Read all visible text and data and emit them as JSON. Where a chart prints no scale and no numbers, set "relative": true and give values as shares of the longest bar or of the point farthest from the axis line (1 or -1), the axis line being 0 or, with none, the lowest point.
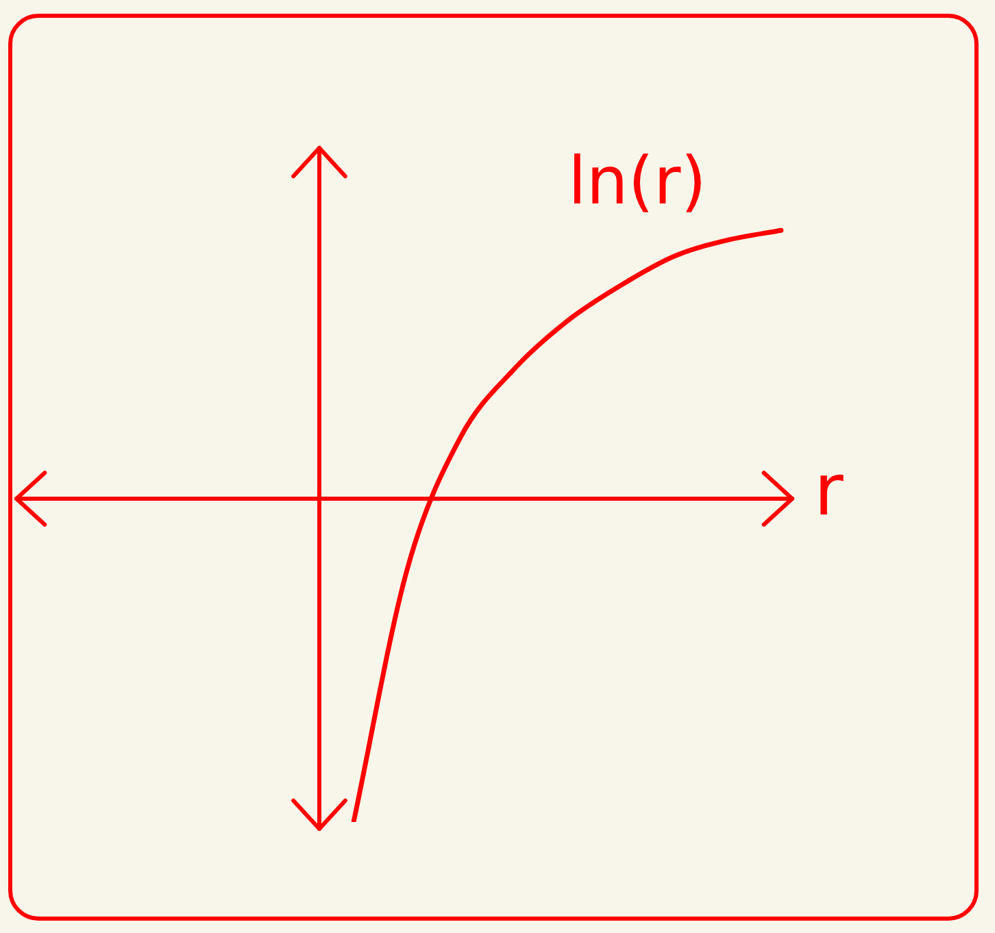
{
  "chart_data": {
    "type": "line",
    "relative": true,
    "xlabel": "r",
    "marker": "none",
    "ref_lines": [
      {
        "axis": "y",
        "value": 0
      }
    ],
    "categories": [
      null,
      null,
      null,
      null,
      null,
      null,
      null,
      null,
      null
    ],
    "series": [
      {
        "name": "ln(r)",
        "color": "#ff0000",
        "values": [
          -1,
          -0.22,
          0.19,
          0.4,
          0.55,
          0.66,
          0.75,
          0.8,
          0.83
        ]
      }
    ]
  }
}
